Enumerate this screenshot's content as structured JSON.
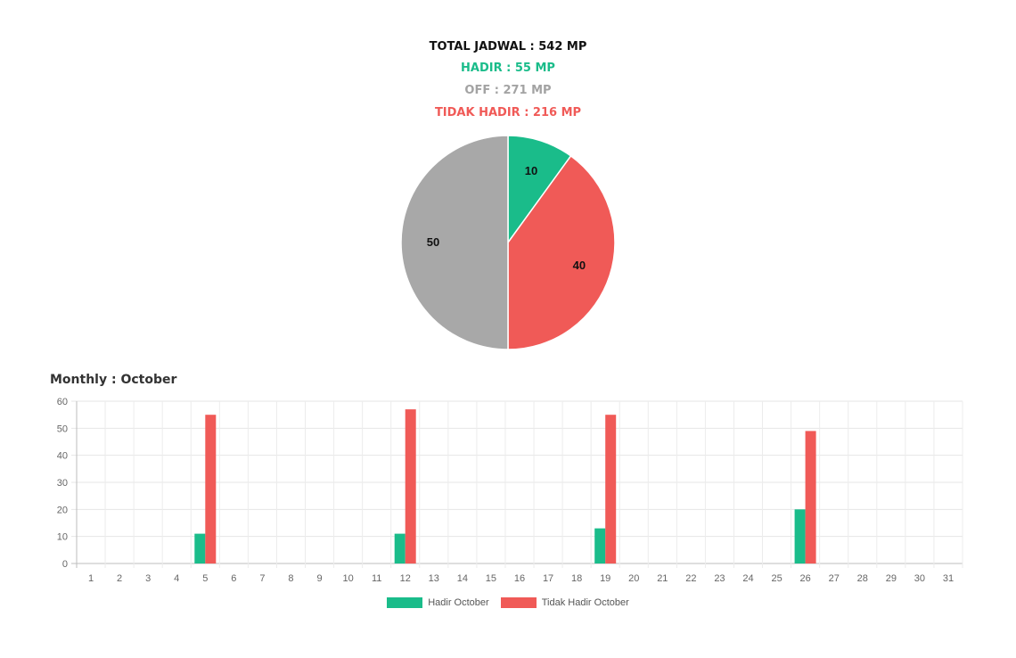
{
  "summary": {
    "total": "TOTAL JADWAL : 542 MP",
    "hadir": "HADIR : 55 MP",
    "off": "OFF : 271 MP",
    "tidak_hadir": "TIDAK HADIR : 216 MP"
  },
  "colors": {
    "hadir": "#1abc8a",
    "tidak_hadir": "#f05a57",
    "off": "#a8a8a8"
  },
  "monthly": {
    "title": "Monthly : October"
  },
  "chart_data": [
    {
      "type": "pie",
      "slices": [
        {
          "label": "10",
          "value": 10,
          "color": "#1abc8a"
        },
        {
          "label": "40",
          "value": 40,
          "color": "#f05a57"
        },
        {
          "label": "50",
          "value": 50,
          "color": "#a8a8a8"
        }
      ]
    },
    {
      "type": "bar",
      "categories": [
        "1",
        "2",
        "3",
        "4",
        "5",
        "6",
        "7",
        "8",
        "9",
        "10",
        "11",
        "12",
        "13",
        "14",
        "15",
        "16",
        "17",
        "18",
        "19",
        "20",
        "21",
        "22",
        "23",
        "24",
        "25",
        "26",
        "27",
        "28",
        "29",
        "30",
        "31"
      ],
      "series": [
        {
          "name": "Hadir October",
          "color": "#1abc8a",
          "values": [
            0,
            0,
            0,
            0,
            11,
            0,
            0,
            0,
            0,
            0,
            0,
            11,
            0,
            0,
            0,
            0,
            0,
            0,
            13,
            0,
            0,
            0,
            0,
            0,
            0,
            20,
            0,
            0,
            0,
            0,
            0
          ]
        },
        {
          "name": "Tidak Hadir October",
          "color": "#f05a57",
          "values": [
            0,
            0,
            0,
            0,
            55,
            0,
            0,
            0,
            0,
            0,
            0,
            57,
            0,
            0,
            0,
            0,
            0,
            0,
            55,
            0,
            0,
            0,
            0,
            0,
            0,
            49,
            0,
            0,
            0,
            0,
            0
          ]
        }
      ],
      "ylim": [
        0,
        60
      ],
      "yticks": [
        0,
        10,
        20,
        30,
        40,
        50,
        60
      ],
      "grid": true,
      "legend": "bottom"
    }
  ]
}
